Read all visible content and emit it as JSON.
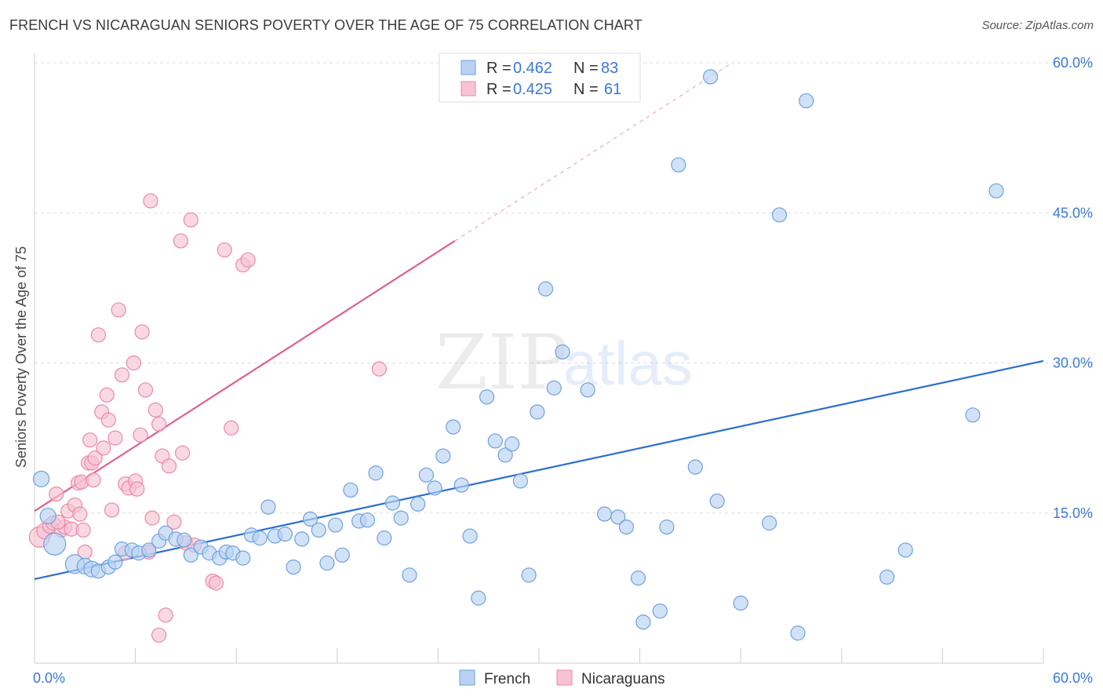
{
  "title": "FRENCH VS NICARAGUAN SENIORS POVERTY OVER THE AGE OF 75 CORRELATION CHART",
  "source": "Source: ZipAtlas.com",
  "watermark": {
    "zip": "ZIP",
    "atlas": "atlas"
  },
  "legend": {
    "r_label": "R =",
    "n_label": "N =",
    "items": [
      {
        "name": "French",
        "r": "0.462",
        "n": "83",
        "color": "#6fa0e0",
        "fill": "#b9d2f3"
      },
      {
        "name": "Nicaraguans",
        "r": "0.425",
        "n": "61",
        "color": "#e88aa8",
        "fill": "#f7c3d3"
      }
    ]
  },
  "colors": {
    "blue_line": "#2a6fd1",
    "pink_line": "#e0608a",
    "grid": "#dddddd",
    "axis_text": "#3b78d8"
  },
  "chart_data": {
    "type": "scatter",
    "title": "FRENCH VS NICARAGUAN SENIORS POVERTY OVER THE AGE OF 75 CORRELATION CHART",
    "xlabel": "",
    "ylabel": "Seniors Poverty Over the Age of 75",
    "xlim": [
      0,
      60
    ],
    "ylim": [
      0,
      60
    ],
    "x_tick_labels": [
      "0.0%",
      "60.0%"
    ],
    "y_tick_labels": [
      "15.0%",
      "30.0%",
      "45.0%",
      "60.0%"
    ],
    "y_ticks": [
      15,
      30,
      45,
      60
    ],
    "grid": true,
    "legend_position": "top-center",
    "series": [
      {
        "name": "French",
        "trendline": {
          "x": [
            0,
            60
          ],
          "y": [
            8.4,
            30.2
          ]
        },
        "points": [
          [
            0.4,
            18.4,
            10
          ],
          [
            0.8,
            14.7,
            10
          ],
          [
            1.2,
            11.9,
            14
          ],
          [
            2.4,
            9.9,
            12
          ],
          [
            3.0,
            9.7,
            10
          ],
          [
            3.4,
            9.4,
            10
          ],
          [
            3.8,
            9.2,
            9
          ],
          [
            4.4,
            9.6,
            9
          ],
          [
            4.8,
            10.1,
            9
          ],
          [
            5.2,
            11.4,
            9
          ],
          [
            5.8,
            11.3,
            9
          ],
          [
            6.2,
            11.0,
            9
          ],
          [
            6.8,
            11.3,
            9
          ],
          [
            7.4,
            12.2,
            9
          ],
          [
            7.8,
            13.0,
            9
          ],
          [
            8.4,
            12.4,
            9
          ],
          [
            8.9,
            12.3,
            9
          ],
          [
            9.3,
            10.8,
            9
          ],
          [
            9.9,
            11.6,
            9
          ],
          [
            10.4,
            11.0,
            9
          ],
          [
            11.0,
            10.5,
            9
          ],
          [
            11.4,
            11.1,
            9
          ],
          [
            11.8,
            11.0,
            9
          ],
          [
            12.4,
            10.5,
            9
          ],
          [
            12.9,
            12.8,
            9
          ],
          [
            13.4,
            12.5,
            9
          ],
          [
            13.9,
            15.6,
            9
          ],
          [
            14.3,
            12.7,
            9
          ],
          [
            14.9,
            12.9,
            9
          ],
          [
            15.4,
            9.6,
            9
          ],
          [
            15.9,
            12.4,
            9
          ],
          [
            16.4,
            14.4,
            9
          ],
          [
            16.9,
            13.3,
            9
          ],
          [
            17.4,
            10.0,
            9
          ],
          [
            17.9,
            13.8,
            9
          ],
          [
            18.3,
            10.8,
            9
          ],
          [
            18.8,
            17.3,
            9
          ],
          [
            19.3,
            14.2,
            9
          ],
          [
            19.8,
            14.3,
            9
          ],
          [
            20.3,
            19.0,
            9
          ],
          [
            20.8,
            12.5,
            9
          ],
          [
            21.3,
            16.0,
            9
          ],
          [
            21.8,
            14.5,
            9
          ],
          [
            22.3,
            8.8,
            9
          ],
          [
            22.8,
            15.9,
            9
          ],
          [
            23.3,
            18.8,
            9
          ],
          [
            23.8,
            17.5,
            9
          ],
          [
            24.3,
            20.7,
            9
          ],
          [
            24.9,
            23.6,
            9
          ],
          [
            25.4,
            17.8,
            9
          ],
          [
            25.9,
            12.7,
            9
          ],
          [
            26.4,
            6.5,
            9
          ],
          [
            26.9,
            26.6,
            9
          ],
          [
            27.4,
            22.2,
            9
          ],
          [
            28.0,
            20.8,
            9
          ],
          [
            28.4,
            21.9,
            9
          ],
          [
            28.9,
            18.2,
            9
          ],
          [
            29.4,
            8.8,
            9
          ],
          [
            29.9,
            25.1,
            9
          ],
          [
            30.4,
            37.4,
            9
          ],
          [
            30.9,
            27.5,
            9
          ],
          [
            31.4,
            31.1,
            9
          ],
          [
            32.9,
            27.3,
            9
          ],
          [
            33.9,
            14.9,
            9
          ],
          [
            34.7,
            14.6,
            9
          ],
          [
            35.2,
            13.6,
            9
          ],
          [
            35.9,
            8.5,
            9
          ],
          [
            36.2,
            4.1,
            9
          ],
          [
            37.2,
            5.2,
            9
          ],
          [
            37.6,
            13.6,
            9
          ],
          [
            38.3,
            49.8,
            9
          ],
          [
            39.3,
            19.6,
            9
          ],
          [
            40.2,
            58.6,
            9
          ],
          [
            40.6,
            16.2,
            9
          ],
          [
            42.0,
            6.0,
            9
          ],
          [
            43.7,
            14.0,
            9
          ],
          [
            44.3,
            44.8,
            9
          ],
          [
            45.4,
            3.0,
            9
          ],
          [
            45.9,
            56.2,
            9
          ],
          [
            50.7,
            8.6,
            9
          ],
          [
            51.8,
            11.3,
            9
          ],
          [
            55.8,
            24.8,
            9
          ],
          [
            57.2,
            47.2,
            9
          ]
        ]
      },
      {
        "name": "Nicaraguans",
        "trendline": {
          "x": [
            0,
            25
          ],
          "y": [
            15.2,
            42.2
          ]
        },
        "points": [
          [
            0.3,
            12.6,
            13
          ],
          [
            0.6,
            13.2,
            10
          ],
          [
            0.9,
            13.7,
            9
          ],
          [
            1.1,
            14.0,
            9
          ],
          [
            1.3,
            16.9,
            9
          ],
          [
            1.6,
            13.3,
            9
          ],
          [
            1.8,
            13.6,
            9
          ],
          [
            2.0,
            15.2,
            9
          ],
          [
            2.2,
            13.4,
            9
          ],
          [
            2.4,
            15.8,
            9
          ],
          [
            2.6,
            18.0,
            9
          ],
          [
            2.7,
            14.9,
            9
          ],
          [
            2.8,
            18.1,
            9
          ],
          [
            3.0,
            11.1,
            9
          ],
          [
            3.2,
            20.0,
            9
          ],
          [
            3.3,
            22.3,
            9
          ],
          [
            3.4,
            20.0,
            9
          ],
          [
            3.5,
            18.3,
            9
          ],
          [
            3.6,
            20.5,
            9
          ],
          [
            3.8,
            32.8,
            9
          ],
          [
            4.0,
            25.1,
            9
          ],
          [
            4.1,
            21.5,
            9
          ],
          [
            4.3,
            26.8,
            9
          ],
          [
            4.4,
            24.3,
            9
          ],
          [
            4.6,
            15.3,
            9
          ],
          [
            4.8,
            22.5,
            9
          ],
          [
            5.0,
            35.3,
            9
          ],
          [
            5.2,
            28.8,
            9
          ],
          [
            5.4,
            17.9,
            9
          ],
          [
            5.6,
            17.5,
            9
          ],
          [
            5.9,
            30.0,
            9
          ],
          [
            6.0,
            18.2,
            9
          ],
          [
            6.1,
            17.4,
            9
          ],
          [
            6.3,
            22.8,
            9
          ],
          [
            6.4,
            33.1,
            9
          ],
          [
            6.6,
            27.3,
            9
          ],
          [
            6.9,
            46.2,
            9
          ],
          [
            7.0,
            14.5,
            9
          ],
          [
            7.2,
            25.3,
            9
          ],
          [
            7.4,
            23.9,
            9
          ],
          [
            7.6,
            20.7,
            9
          ],
          [
            7.8,
            4.8,
            9
          ],
          [
            7.4,
            2.8,
            9
          ],
          [
            8.0,
            19.7,
            9
          ],
          [
            8.3,
            14.1,
            9
          ],
          [
            8.8,
            21.0,
            9
          ],
          [
            9.0,
            12.0,
            9
          ],
          [
            8.7,
            42.2,
            9
          ],
          [
            9.3,
            44.3,
            9
          ],
          [
            10.6,
            8.2,
            9
          ],
          [
            10.8,
            8.0,
            9
          ],
          [
            11.3,
            41.3,
            9
          ],
          [
            11.7,
            23.5,
            9
          ],
          [
            12.4,
            39.8,
            9
          ],
          [
            12.7,
            40.3,
            9
          ],
          [
            20.5,
            29.4,
            9
          ],
          [
            1.4,
            14.1,
            9
          ],
          [
            2.9,
            13.3,
            9
          ],
          [
            5.4,
            11.0,
            9
          ],
          [
            9.5,
            11.8,
            9
          ],
          [
            6.8,
            11.1,
            9
          ]
        ]
      }
    ]
  }
}
